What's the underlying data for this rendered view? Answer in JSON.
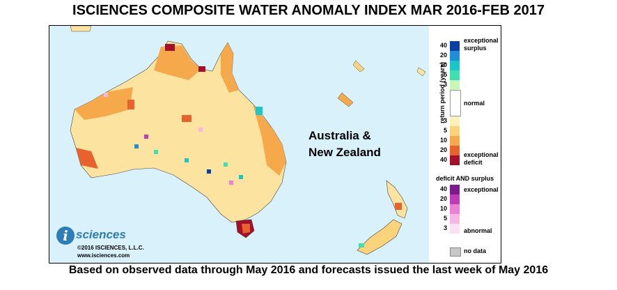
{
  "title": "ISCIENCES COMPOSITE WATER ANOMALY INDEX MAR 2016-FEB 2017",
  "region_label_line1": "Australia &",
  "region_label_line2": "New Zealand",
  "footer": "Based on observed data through May 2016 and forecasts issued the last week of May 2016",
  "logo": {
    "letter": "i",
    "word": "sciences",
    "copyright": "©2016 ISCIENCES, L.L.C.",
    "url": "www.isciences.com"
  },
  "legend": {
    "axis_label": "return period (years)",
    "top_label_1": "exceptional",
    "top_label_2": "surplus",
    "normal_label": "normal",
    "deficit_label_1": "exceptional",
    "deficit_label_2": "deficit",
    "both_title": "deficit AND surplus",
    "both_exceptional": "exceptional",
    "both_abnormal": "abnormal",
    "nodata_label": "no data",
    "surplus_ticks": [
      "40",
      "20",
      "10",
      "5",
      "3"
    ],
    "deficit_ticks": [
      "3",
      "5",
      "10",
      "20",
      "40"
    ],
    "both_ticks": [
      "40",
      "20",
      "10",
      "5",
      "3"
    ],
    "surplus_colors": [
      "#0b3fa8",
      "#1d8fd8",
      "#19c6c9",
      "#3fe0b0",
      "#c9f7b6"
    ],
    "normal_color": "#ffffff",
    "deficit_colors": [
      "#fdf0b8",
      "#fbd37a",
      "#f6a94b",
      "#e8622d",
      "#a4102a"
    ],
    "both_colors": [
      "#7c1a8e",
      "#c03cb6",
      "#ee7fd6",
      "#f6b6e6",
      "#fbe1f3"
    ],
    "nodata_color": "#c8c8c8"
  }
}
